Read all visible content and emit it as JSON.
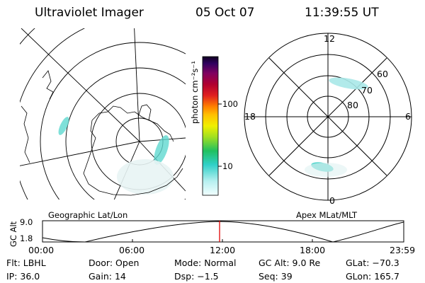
{
  "header": {
    "title": "Ultraviolet Imager",
    "date": "05 Oct 07",
    "time": "11:39:55 UT"
  },
  "left_panel": {
    "label": "Geographic Lat/Lon"
  },
  "colorbar": {
    "label": "photon cm⁻²s⁻¹",
    "ticks": [
      "100",
      "10"
    ]
  },
  "right_panel": {
    "label": "Apex MLat/MLT",
    "mlt_labels": [
      "12",
      "18",
      "6",
      "0"
    ],
    "mlat_labels": [
      "60",
      "70",
      "80"
    ]
  },
  "altitude_strip": {
    "axis_label": "GC Alt",
    "y_ticks": [
      "9.0",
      "1.8"
    ],
    "time_ticks": [
      "00:00",
      "06:00",
      "12:00",
      "18:00",
      "23:59"
    ]
  },
  "info": [
    {
      "key": "Flt:",
      "value": "LBHL"
    },
    {
      "key": "Door:",
      "value": "Open"
    },
    {
      "key": "Mode:",
      "value": "Normal"
    },
    {
      "key": "GC Alt:",
      "value": "9.0 Re"
    },
    {
      "key": "GLat:",
      "value": "−70.3"
    },
    {
      "key": "IP:",
      "value": "36.0"
    },
    {
      "key": "Gain:",
      "value": "14"
    },
    {
      "key": "Dsp:",
      "value": "−1.5"
    },
    {
      "key": "Seq:",
      "value": "39"
    },
    {
      "key": "GLon:",
      "value": "165.7"
    }
  ],
  "colors": {
    "marker": "#e00000",
    "aurora": "#5fd8d0"
  }
}
